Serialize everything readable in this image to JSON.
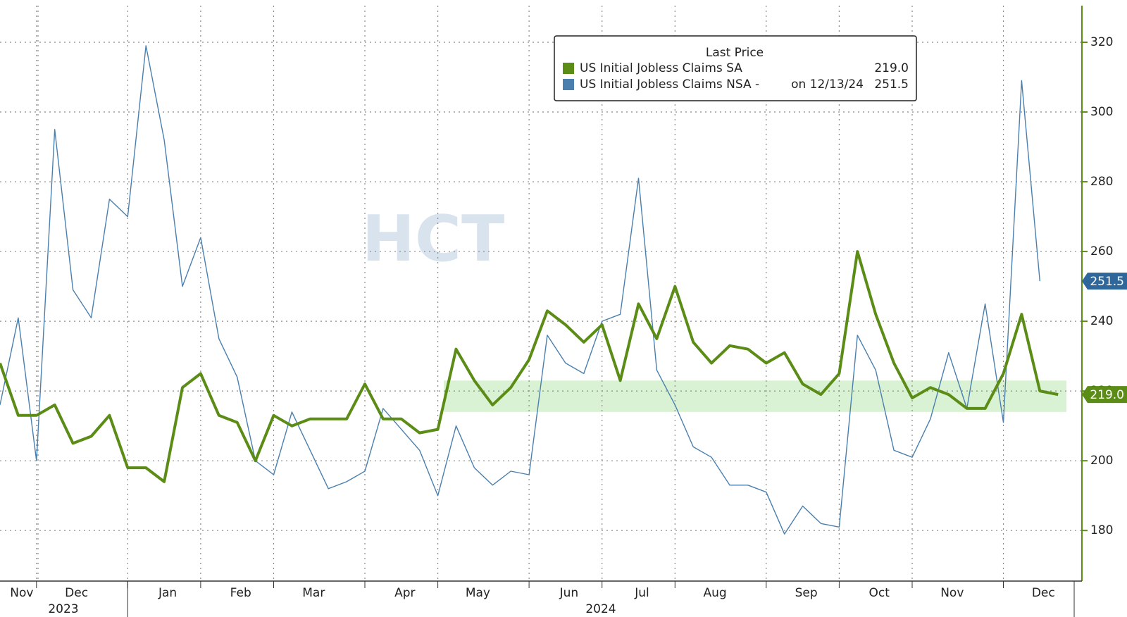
{
  "chart_data": {
    "type": "line",
    "legend_title": "Last Price",
    "categories": [
      null,
      "Nov",
      null,
      null,
      "Dec",
      null,
      null,
      null,
      null,
      "Jan",
      null,
      null,
      null,
      "Feb",
      null,
      null,
      null,
      "Mar",
      null,
      null,
      null,
      null,
      "Apr",
      null,
      null,
      null,
      "May",
      null,
      null,
      null,
      null,
      "Jun",
      null,
      null,
      null,
      "Jul",
      null,
      null,
      null,
      "Aug",
      null,
      null,
      null,
      null,
      "Sep",
      null,
      null,
      null,
      "Oct",
      null,
      null,
      null,
      "Nov",
      null,
      null,
      null,
      null,
      "Dec",
      null
    ],
    "year_labels": [
      "2023",
      "2024"
    ],
    "series": [
      {
        "name": "US Initial Jobless Claims SA",
        "color": "#5b8c16",
        "last_label": "219.0",
        "values": [
          228,
          213,
          213,
          216,
          205,
          207,
          213,
          198,
          198,
          194,
          221,
          225,
          213,
          211,
          200,
          213,
          210,
          212,
          212,
          212,
          222,
          212,
          212,
          208,
          209,
          232,
          223,
          216,
          221,
          229,
          243,
          239,
          234,
          239,
          223,
          245,
          235,
          250,
          234,
          228,
          233,
          232,
          228,
          231,
          222,
          219,
          225,
          260,
          242,
          228,
          218,
          221,
          219,
          215,
          215,
          225,
          242,
          220,
          219.0
        ]
      },
      {
        "name": "US Initial Jobless Claims NSA -",
        "color": "#4a7fae",
        "last_label": "251.5",
        "legend_note": "on 12/13/24",
        "values": [
          216,
          241,
          200,
          295,
          249,
          241,
          275,
          270,
          319,
          292,
          250,
          264,
          235,
          224,
          200,
          196,
          214,
          203,
          192,
          194,
          197,
          215,
          209,
          203,
          190,
          210,
          198,
          193,
          197,
          196,
          236,
          228,
          225,
          240,
          242,
          281,
          226,
          216,
          204,
          201,
          193,
          193,
          191,
          179,
          187,
          182,
          181,
          236,
          226,
          203,
          201,
          212,
          231,
          215,
          245,
          211,
          309,
          251.5,
          null
        ]
      }
    ],
    "highlight_band": [
      214,
      223
    ],
    "ylim": [
      165.5,
      330.5
    ],
    "yticks": [
      180,
      200,
      220,
      240,
      260,
      280,
      300,
      320
    ],
    "grid": true,
    "watermark": "HCT"
  }
}
